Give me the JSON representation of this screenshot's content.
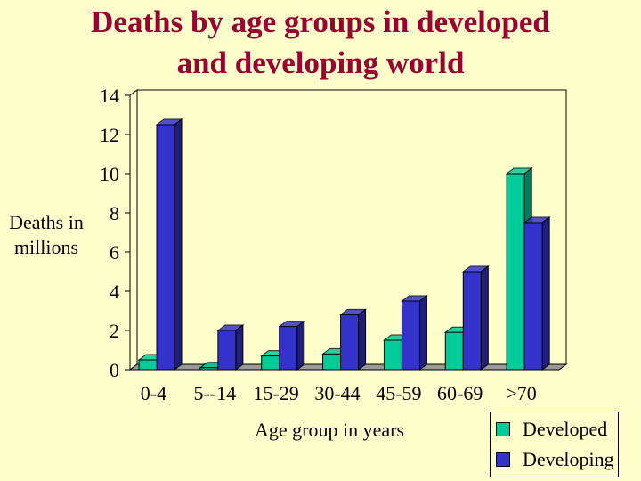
{
  "chart_data": {
    "type": "bar",
    "title_lines": [
      "Deaths by age groups in developed",
      "and developing world"
    ],
    "ylabel_lines": [
      "Deaths in",
      "millions"
    ],
    "xlabel": "Age group in years",
    "categories": [
      "0-4",
      "5--14",
      "15-29",
      "30-44",
      "45-59",
      "60-69",
      ">70"
    ],
    "series": [
      {
        "name": "Developed",
        "values": [
          0.5,
          0.1,
          0.7,
          0.8,
          1.5,
          1.9,
          10
        ],
        "color": "#00cc99"
      },
      {
        "name": "Developing",
        "values": [
          12.5,
          2,
          2.2,
          2.8,
          3.5,
          5,
          7.5
        ],
        "color": "#3333cc"
      }
    ],
    "ylim": [
      0,
      14
    ],
    "yticks": [
      "0",
      "2",
      "4",
      "6",
      "8",
      "10",
      "12",
      "14"
    ],
    "grid": false,
    "legend_position": "bottom-right"
  }
}
